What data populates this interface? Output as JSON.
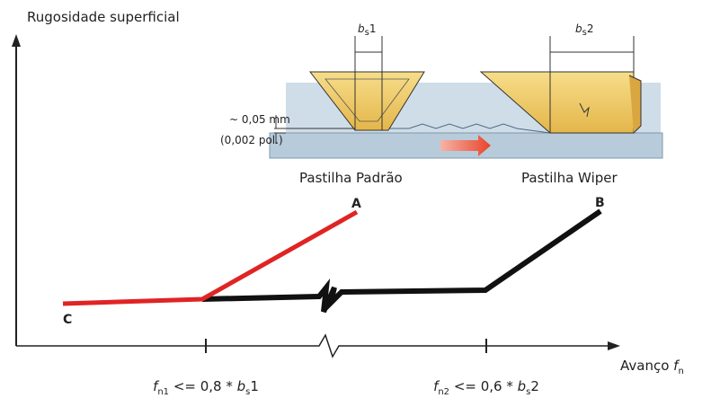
{
  "y_axis_label": "Rugosidade superficial",
  "x_axis_label": [
    "Avanço ",
    "f",
    "n"
  ],
  "insert_width_1": [
    "b",
    "s",
    "1"
  ],
  "insert_width_2": [
    "b",
    "s",
    "2"
  ],
  "depth_mm": "~ 0,05 mm",
  "depth_in": "(0,002 pol.)",
  "insert_standard": "Pastilha Padrão",
  "insert_wiper": "Pastilha Wiper",
  "curve_labels": [
    "A",
    "B",
    "C"
  ],
  "feed_limit_1": [
    "f",
    "n1",
    " <= 0,8 * ",
    "b",
    "s",
    "1"
  ],
  "feed_limit_2": [
    "f",
    "n2",
    " <= 0,6 * ",
    "b",
    "s",
    "2"
  ]
}
